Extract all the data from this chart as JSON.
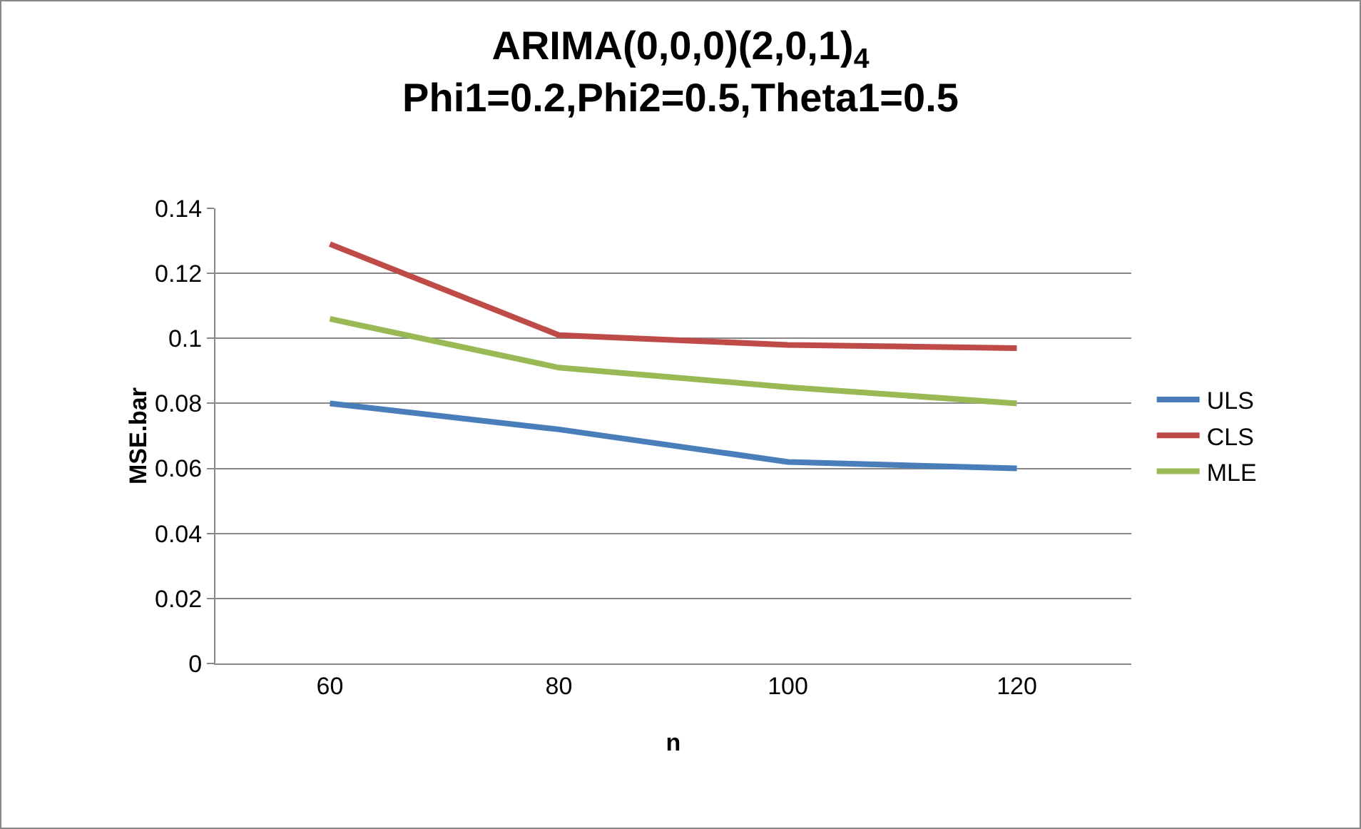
{
  "chart_data": {
    "type": "line",
    "title": "ARIMA(0,0,0)(2,0,1)$_{4}$\nPhi1=0.2,Phi2=0.5,Theta1=0.5",
    "xlabel": "n",
    "ylabel": "MSE.bar",
    "categories": [
      "60",
      "80",
      "100",
      "120"
    ],
    "series": [
      {
        "name": "ULS",
        "color": "#4a7ebb",
        "values": [
          0.08,
          0.072,
          0.062,
          0.06
        ]
      },
      {
        "name": "CLS",
        "color": "#be4b48",
        "values": [
          0.129,
          0.101,
          0.098,
          0.097
        ]
      },
      {
        "name": "MLE",
        "color": "#98b954",
        "values": [
          0.106,
          0.091,
          0.085,
          0.08
        ]
      }
    ],
    "ylim": [
      0,
      0.14
    ],
    "yticks": [
      0,
      0.02,
      0.04,
      0.06,
      0.08,
      0.1,
      0.12,
      0.14
    ],
    "grid": "y",
    "legend": "right",
    "marker": "none",
    "line_style": "solid"
  }
}
